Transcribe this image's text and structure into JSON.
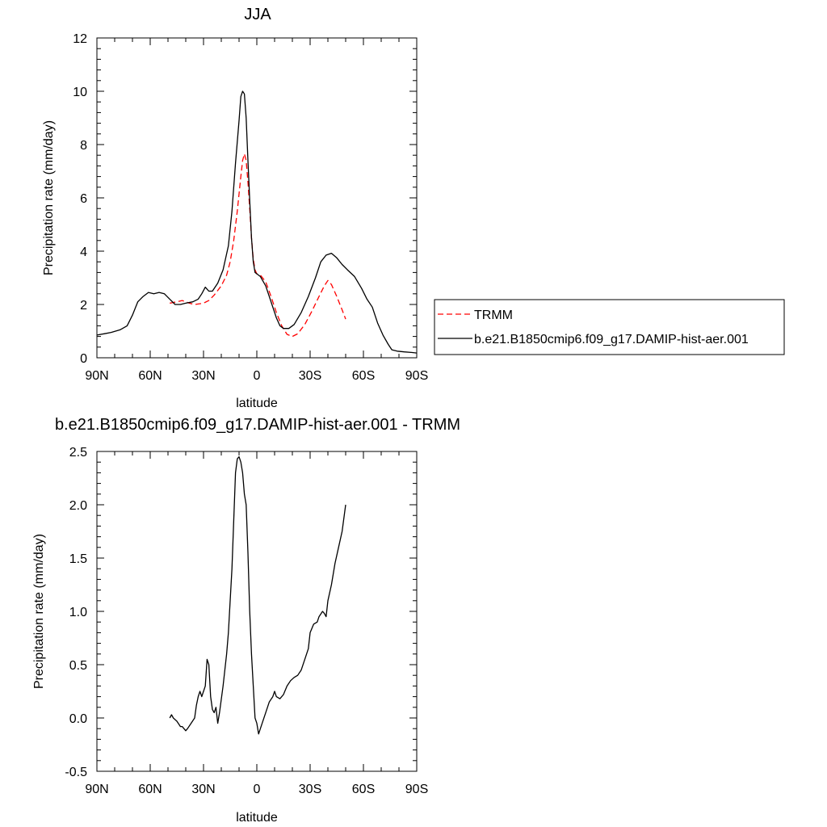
{
  "chart_data": [
    {
      "type": "line",
      "title": "JJA",
      "xlabel": "latitude",
      "ylabel": "Precipitation rate (mm/day)",
      "xlim": [
        90,
        -90
      ],
      "ylim": [
        0,
        12
      ],
      "x_ticks": [
        90,
        60,
        30,
        0,
        -30,
        -60,
        -90
      ],
      "x_tick_labels": [
        "90N",
        "60N",
        "30N",
        "0",
        "30S",
        "60S",
        "90S"
      ],
      "y_ticks": [
        0,
        2,
        4,
        6,
        8,
        10,
        12
      ],
      "y_tick_labels": [
        "0",
        "2",
        "4",
        "6",
        "8",
        "10",
        "12"
      ],
      "grid": false,
      "legend_position": "right",
      "series": [
        {
          "name": "TRMM",
          "color": "#ff0000",
          "dash": "dashed",
          "points": [
            [
              49,
              2.05
            ],
            [
              45,
              2.1
            ],
            [
              42,
              2.15
            ],
            [
              38,
              2.05
            ],
            [
              35,
              2.0
            ],
            [
              30,
              2.05
            ],
            [
              27,
              2.15
            ],
            [
              24,
              2.35
            ],
            [
              20,
              2.7
            ],
            [
              17,
              3.1
            ],
            [
              15,
              3.6
            ],
            [
              13,
              4.4
            ],
            [
              11,
              5.5
            ],
            [
              9,
              6.8
            ],
            [
              8,
              7.4
            ],
            [
              7,
              7.65
            ],
            [
              6,
              7.4
            ],
            [
              5,
              6.6
            ],
            [
              4,
              5.6
            ],
            [
              3,
              4.5
            ],
            [
              2,
              3.7
            ],
            [
              1,
              3.3
            ],
            [
              0,
              3.15
            ],
            [
              -2,
              3.1
            ],
            [
              -5,
              2.85
            ],
            [
              -8,
              2.3
            ],
            [
              -11,
              1.7
            ],
            [
              -14,
              1.2
            ],
            [
              -17,
              0.88
            ],
            [
              -20,
              0.8
            ],
            [
              -23,
              0.9
            ],
            [
              -27,
              1.25
            ],
            [
              -31,
              1.75
            ],
            [
              -35,
              2.3
            ],
            [
              -38,
              2.7
            ],
            [
              -40,
              2.9
            ],
            [
              -42,
              2.75
            ],
            [
              -45,
              2.3
            ],
            [
              -48,
              1.8
            ],
            [
              -50,
              1.45
            ]
          ]
        },
        {
          "name": "b.e21.B1850cmip6.f09_g17.DAMIP-hist-aer.001",
          "color": "#000000",
          "dash": "solid",
          "points": [
            [
              90,
              0.85
            ],
            [
              86,
              0.9
            ],
            [
              82,
              0.95
            ],
            [
              77,
              1.05
            ],
            [
              73,
              1.2
            ],
            [
              70,
              1.6
            ],
            [
              67,
              2.1
            ],
            [
              64,
              2.3
            ],
            [
              61,
              2.45
            ],
            [
              58,
              2.4
            ],
            [
              55,
              2.45
            ],
            [
              52,
              2.4
            ],
            [
              49,
              2.2
            ],
            [
              46,
              2.0
            ],
            [
              43,
              2.0
            ],
            [
              40,
              2.05
            ],
            [
              36,
              2.1
            ],
            [
              33,
              2.2
            ],
            [
              31,
              2.4
            ],
            [
              29,
              2.65
            ],
            [
              27,
              2.5
            ],
            [
              25,
              2.5
            ],
            [
              22,
              2.8
            ],
            [
              19,
              3.3
            ],
            [
              16,
              4.2
            ],
            [
              14,
              5.5
            ],
            [
              12,
              7.3
            ],
            [
              10,
              8.9
            ],
            [
              9,
              9.8
            ],
            [
              8,
              10.0
            ],
            [
              7,
              9.9
            ],
            [
              6,
              9.0
            ],
            [
              5,
              7.4
            ],
            [
              4,
              5.9
            ],
            [
              3,
              4.5
            ],
            [
              2,
              3.6
            ],
            [
              1,
              3.2
            ],
            [
              -2,
              3.05
            ],
            [
              -5,
              2.7
            ],
            [
              -8,
              2.1
            ],
            [
              -11,
              1.5
            ],
            [
              -13,
              1.2
            ],
            [
              -15,
              1.1
            ],
            [
              -18,
              1.1
            ],
            [
              -21,
              1.25
            ],
            [
              -25,
              1.7
            ],
            [
              -29,
              2.3
            ],
            [
              -33,
              3.0
            ],
            [
              -36,
              3.6
            ],
            [
              -39,
              3.85
            ],
            [
              -42,
              3.92
            ],
            [
              -45,
              3.75
            ],
            [
              -48,
              3.5
            ],
            [
              -51,
              3.3
            ],
            [
              -55,
              3.05
            ],
            [
              -59,
              2.6
            ],
            [
              -62,
              2.2
            ],
            [
              -65,
              1.9
            ],
            [
              -68,
              1.3
            ],
            [
              -71,
              0.85
            ],
            [
              -74,
              0.5
            ],
            [
              -76,
              0.3
            ],
            [
              -79,
              0.25
            ],
            [
              -83,
              0.22
            ],
            [
              -87,
              0.2
            ],
            [
              -90,
              0.18
            ]
          ]
        }
      ]
    },
    {
      "type": "line",
      "title": "b.e21.B1850cmip6.f09_g17.DAMIP-hist-aer.001 - TRMM",
      "xlabel": "latitude",
      "ylabel": "Precipitation rate (mm/day)",
      "xlim": [
        90,
        -90
      ],
      "ylim": [
        -0.5,
        2.5
      ],
      "x_ticks": [
        90,
        60,
        30,
        0,
        -30,
        -60,
        -90
      ],
      "x_tick_labels": [
        "90N",
        "60N",
        "30N",
        "0",
        "30S",
        "60S",
        "90S"
      ],
      "y_ticks": [
        -0.5,
        0.0,
        0.5,
        1.0,
        1.5,
        2.0,
        2.5
      ],
      "y_tick_labels": [
        "-0.5",
        "0.0",
        "0.5",
        "1.0",
        "1.5",
        "2.0",
        "2.5"
      ],
      "grid": false,
      "series": [
        {
          "color": "#000000",
          "dash": "solid",
          "points": [
            [
              49,
              0.0
            ],
            [
              48,
              0.03
            ],
            [
              47,
              0.0
            ],
            [
              45,
              -0.03
            ],
            [
              43,
              -0.08
            ],
            [
              42,
              -0.08
            ],
            [
              41,
              -0.1
            ],
            [
              40,
              -0.12
            ],
            [
              39,
              -0.1
            ],
            [
              37,
              -0.05
            ],
            [
              35,
              0.0
            ],
            [
              34,
              0.12
            ],
            [
              33,
              0.2
            ],
            [
              32,
              0.25
            ],
            [
              31,
              0.2
            ],
            [
              30,
              0.25
            ],
            [
              29,
              0.3
            ],
            [
              28,
              0.55
            ],
            [
              27,
              0.5
            ],
            [
              26,
              0.2
            ],
            [
              25,
              0.08
            ],
            [
              24,
              0.05
            ],
            [
              23,
              0.1
            ],
            [
              22,
              -0.05
            ],
            [
              21,
              0.05
            ],
            [
              19,
              0.3
            ],
            [
              17,
              0.6
            ],
            [
              16,
              0.8
            ],
            [
              15,
              1.1
            ],
            [
              14,
              1.4
            ],
            [
              13,
              1.85
            ],
            [
              12,
              2.3
            ],
            [
              11,
              2.43
            ],
            [
              10,
              2.45
            ],
            [
              9,
              2.4
            ],
            [
              8,
              2.3
            ],
            [
              7,
              2.1
            ],
            [
              6,
              2.0
            ],
            [
              5,
              1.55
            ],
            [
              4,
              1.0
            ],
            [
              3,
              0.6
            ],
            [
              2,
              0.3
            ],
            [
              1,
              0.0
            ],
            [
              0,
              -0.05
            ],
            [
              -1,
              -0.15
            ],
            [
              -3,
              -0.05
            ],
            [
              -5,
              0.05
            ],
            [
              -7,
              0.15
            ],
            [
              -9,
              0.2
            ],
            [
              -10,
              0.25
            ],
            [
              -11,
              0.2
            ],
            [
              -13,
              0.18
            ],
            [
              -15,
              0.22
            ],
            [
              -17,
              0.3
            ],
            [
              -19,
              0.35
            ],
            [
              -21,
              0.38
            ],
            [
              -23,
              0.4
            ],
            [
              -25,
              0.45
            ],
            [
              -27,
              0.55
            ],
            [
              -29,
              0.65
            ],
            [
              -30,
              0.8
            ],
            [
              -32,
              0.88
            ],
            [
              -34,
              0.9
            ],
            [
              -35,
              0.95
            ],
            [
              -37,
              1.0
            ],
            [
              -38,
              0.98
            ],
            [
              -39,
              0.95
            ],
            [
              -40,
              1.1
            ],
            [
              -42,
              1.25
            ],
            [
              -44,
              1.45
            ],
            [
              -46,
              1.6
            ],
            [
              -48,
              1.75
            ],
            [
              -50,
              2.0
            ]
          ]
        }
      ]
    }
  ]
}
